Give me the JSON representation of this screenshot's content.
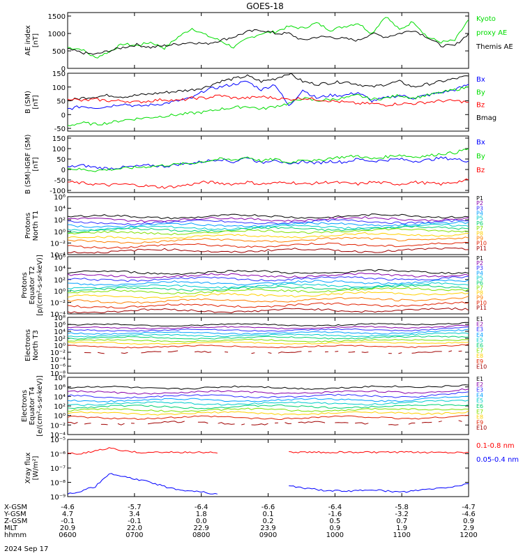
{
  "title": "GOES-18",
  "date_label": "2024 Sep 17",
  "colors": {
    "black": "#000000",
    "blue": "#0000ff",
    "green": "#00dd00",
    "red": "#ff0000",
    "spectrum": [
      "#000000",
      "#8800aa",
      "#3030ff",
      "#00a0ff",
      "#00cccc",
      "#00d070",
      "#80e000",
      "#ffd000",
      "#ff8000",
      "#e02000",
      "#a00000"
    ]
  },
  "chart_data": [
    {
      "type": "line",
      "id": "ae",
      "ylabel": "AE index\n[nT]",
      "ylim": [
        0,
        1600
      ],
      "log": false,
      "yticks": [
        0,
        500,
        1000,
        1500
      ],
      "ytick_labels": [
        "0",
        "500",
        "1000",
        "1500"
      ],
      "legend": [
        {
          "text": "Kyoto",
          "color": "green"
        },
        {
          "text": "proxy AE",
          "color": "green"
        },
        {
          "text": "Themis AE",
          "color": "black"
        }
      ],
      "series": [
        {
          "color": "green",
          "values": [
            600,
            550,
            300,
            480,
            700,
            650,
            750,
            580,
            900,
            1150,
            950,
            800,
            600,
            850,
            1000,
            1050,
            1200,
            1150,
            1300,
            1100,
            1200,
            1300,
            1000,
            1500,
            1100,
            1350,
            900,
            750,
            800,
            1400
          ]
        },
        {
          "color": "black",
          "values": [
            550,
            450,
            400,
            500,
            600,
            680,
            600,
            650,
            700,
            750,
            700,
            800,
            900,
            1050,
            1100,
            1000,
            1000,
            800,
            900,
            900,
            850,
            800,
            1000,
            900,
            1000,
            1100,
            900,
            650,
            650,
            1000
          ]
        }
      ]
    },
    {
      "type": "line",
      "id": "bsm",
      "ylabel": "B (SM)\n[nT]",
      "ylim": [
        -60,
        150
      ],
      "log": false,
      "yticks": [
        -50,
        0,
        50,
        100,
        150
      ],
      "ytick_labels": [
        "-50",
        "0",
        "50",
        "100",
        "150"
      ],
      "legend": [
        {
          "text": "Bx",
          "color": "blue"
        },
        {
          "text": "By",
          "color": "green"
        },
        {
          "text": "Bz",
          "color": "red"
        },
        {
          "text": "Bmag",
          "color": "black"
        }
      ],
      "series": [
        {
          "color": "black",
          "values": [
            50,
            60,
            65,
            70,
            65,
            70,
            75,
            80,
            85,
            90,
            100,
            120,
            130,
            140,
            120,
            130,
            150,
            120,
            110,
            115,
            120,
            110,
            100,
            110,
            120,
            100,
            110,
            120,
            130,
            140
          ]
        },
        {
          "color": "blue",
          "values": [
            20,
            30,
            25,
            30,
            40,
            30,
            35,
            40,
            50,
            60,
            90,
            100,
            110,
            120,
            90,
            110,
            30,
            90,
            60,
            70,
            70,
            80,
            50,
            60,
            70,
            60,
            70,
            80,
            90,
            110
          ]
        },
        {
          "color": "green",
          "values": [
            -40,
            -30,
            -35,
            -30,
            -20,
            -15,
            -10,
            -5,
            0,
            5,
            10,
            20,
            25,
            30,
            20,
            30,
            40,
            60,
            50,
            55,
            60,
            70,
            55,
            60,
            70,
            60,
            70,
            80,
            90,
            100
          ]
        },
        {
          "color": "red",
          "values": [
            60,
            50,
            55,
            50,
            50,
            45,
            50,
            55,
            50,
            60,
            60,
            70,
            60,
            60,
            65,
            60,
            55,
            60,
            55,
            50,
            45,
            40,
            40,
            35,
            40,
            40,
            45,
            50,
            50,
            45
          ]
        }
      ]
    },
    {
      "type": "line",
      "id": "bsm_igrf",
      "ylabel": "B (SM)-IGRF (SM)\n[nT]",
      "ylim": [
        -110,
        160
      ],
      "log": false,
      "yticks": [
        -100,
        -50,
        0,
        50,
        100,
        150
      ],
      "ytick_labels": [
        "-100",
        "-50",
        "0",
        "50",
        "100",
        "150"
      ],
      "legend": [
        {
          "text": "Bx",
          "color": "blue"
        },
        {
          "text": "By",
          "color": "green"
        },
        {
          "text": "Bz",
          "color": "red"
        }
      ],
      "series": [
        {
          "color": "blue",
          "values": [
            10,
            20,
            10,
            5,
            10,
            15,
            20,
            15,
            25,
            30,
            40,
            50,
            35,
            60,
            30,
            50,
            20,
            40,
            30,
            40,
            35,
            50,
            40,
            45,
            50,
            40,
            45,
            55,
            50,
            40
          ]
        },
        {
          "color": "green",
          "values": [
            5,
            0,
            -5,
            0,
            5,
            10,
            15,
            20,
            25,
            30,
            40,
            50,
            45,
            60,
            40,
            50,
            30,
            50,
            40,
            55,
            60,
            65,
            50,
            60,
            70,
            60,
            65,
            75,
            80,
            100
          ]
        },
        {
          "color": "red",
          "values": [
            -60,
            -65,
            -70,
            -75,
            -70,
            -75,
            -80,
            -85,
            -80,
            -70,
            -60,
            -65,
            -70,
            -60,
            -70,
            -65,
            -60,
            -70,
            -65,
            -60,
            -65,
            -70,
            -60,
            -65,
            -70,
            -60,
            -65,
            -70,
            -60,
            -50
          ]
        }
      ]
    },
    {
      "type": "line",
      "id": "protons_t1",
      "ylabel": "Protons\nNorth T1",
      "ylim": [
        0.0001,
        1000000
      ],
      "log": true,
      "yticks": [
        0.0001,
        0.01,
        1,
        100,
        10000,
        1000000
      ],
      "ytick_labels": [
        "10⁻⁴",
        "10⁻²",
        "10⁰",
        "10²",
        "10⁴",
        "10⁶"
      ],
      "legend": [
        {
          "text": "P1",
          "color": "spectrum.0"
        },
        {
          "text": "P2",
          "color": "spectrum.1"
        },
        {
          "text": "P3",
          "color": "spectrum.2"
        },
        {
          "text": "P4",
          "color": "spectrum.3"
        },
        {
          "text": "P5",
          "color": "spectrum.4"
        },
        {
          "text": "P6",
          "color": "spectrum.5"
        },
        {
          "text": "P7",
          "color": "spectrum.6"
        },
        {
          "text": "P8",
          "color": "spectrum.7"
        },
        {
          "text": "P9",
          "color": "spectrum.8"
        },
        {
          "text": "P10",
          "color": "spectrum.9"
        },
        {
          "text": "P11",
          "color": "spectrum.10"
        }
      ],
      "series_log10": [
        2.5,
        2.0,
        1.5,
        1.0,
        0.5,
        0.1,
        -0.4,
        -1.2,
        -1.8,
        -2.6,
        -3.4
      ],
      "series_drift": [
        0.2,
        0.2,
        0.25,
        0.3,
        0.4,
        0.55,
        0.7,
        0.8,
        0.6,
        0.4,
        0.2
      ]
    },
    {
      "type": "line",
      "id": "protons_t2",
      "ylabel": "Protons\nEquator T2\n[p/(cm²-s-sr-keV)]",
      "ylim": [
        0.0001,
        1000000
      ],
      "log": true,
      "yticks": [
        0.0001,
        0.01,
        1,
        100,
        10000,
        1000000
      ],
      "ytick_labels": [
        "10⁻⁴",
        "10⁻²",
        "10⁰",
        "10²",
        "10⁴",
        "10⁶"
      ],
      "legend": [
        {
          "text": "P1",
          "color": "spectrum.0"
        },
        {
          "text": "P2",
          "color": "spectrum.1"
        },
        {
          "text": "P3",
          "color": "spectrum.2"
        },
        {
          "text": "P4",
          "color": "spectrum.3"
        },
        {
          "text": "P5",
          "color": "spectrum.4"
        },
        {
          "text": "P6",
          "color": "spectrum.5"
        },
        {
          "text": "P7",
          "color": "spectrum.6"
        },
        {
          "text": "P8",
          "color": "spectrum.7"
        },
        {
          "text": "P9",
          "color": "spectrum.8"
        },
        {
          "text": "P10",
          "color": "spectrum.9"
        },
        {
          "text": "P11",
          "color": "spectrum.10"
        }
      ],
      "series_log10": [
        3.2,
        2.6,
        2.0,
        1.3,
        0.7,
        0.2,
        -0.3,
        -1.1,
        -1.9,
        -2.7,
        -3.5
      ],
      "series_drift": [
        0.2,
        0.2,
        0.25,
        0.3,
        0.4,
        0.55,
        0.7,
        0.8,
        0.6,
        0.4,
        0.2
      ]
    },
    {
      "type": "line",
      "id": "electrons_t3",
      "ylabel": "Electrons\nNorth T3",
      "ylim": [
        1e-08,
        100000000
      ],
      "log": true,
      "yticks": [
        1e-08,
        1e-06,
        0.0001,
        0.01,
        1,
        100,
        10000,
        1000000,
        100000000
      ],
      "ytick_labels": [
        "10⁻⁸",
        "10⁻⁶",
        "10⁻⁴",
        "10⁻²",
        "10⁰",
        "10²",
        "10⁴",
        "10⁶",
        "10⁸"
      ],
      "legend": [
        {
          "text": "E1",
          "color": "spectrum.0"
        },
        {
          "text": "E2",
          "color": "spectrum.1"
        },
        {
          "text": "E3",
          "color": "spectrum.2"
        },
        {
          "text": "E4",
          "color": "spectrum.3"
        },
        {
          "text": "E5",
          "color": "spectrum.4"
        },
        {
          "text": "E6",
          "color": "spectrum.5"
        },
        {
          "text": "E7",
          "color": "spectrum.6"
        },
        {
          "text": "E8",
          "color": "spectrum.7"
        },
        {
          "text": "E9",
          "color": "spectrum.9"
        },
        {
          "text": "E10",
          "color": "spectrum.10"
        }
      ],
      "series_log10": [
        5.8,
        5.0,
        4.3,
        3.5,
        2.8,
        2.1,
        1.3,
        0.6,
        -0.4,
        -2.0
      ],
      "series_drift": [
        0.1,
        0.1,
        0.1,
        0.1,
        0.1,
        0.1,
        0.1,
        0.1,
        0.1,
        0.0
      ]
    },
    {
      "type": "line",
      "id": "electrons_t4",
      "ylabel": "Electrons\nEquator T4\n[e/(cm²-s-sr-keV)]",
      "ylim": [
        0.0001,
        100000000
      ],
      "log": true,
      "yticks": [
        0.0001,
        0.01,
        1,
        100,
        10000,
        1000000,
        100000000
      ],
      "ytick_labels": [
        "10⁻⁴",
        "10⁻²",
        "10⁰",
        "10²",
        "10⁴",
        "10⁶",
        "10⁸"
      ],
      "legend": [
        {
          "text": "E1",
          "color": "spectrum.0"
        },
        {
          "text": "E2",
          "color": "spectrum.1"
        },
        {
          "text": "E3",
          "color": "spectrum.2"
        },
        {
          "text": "E4",
          "color": "spectrum.3"
        },
        {
          "text": "E5",
          "color": "spectrum.4"
        },
        {
          "text": "E6",
          "color": "spectrum.5"
        },
        {
          "text": "E7",
          "color": "spectrum.6"
        },
        {
          "text": "E8",
          "color": "spectrum.7"
        },
        {
          "text": "E9",
          "color": "spectrum.9"
        },
        {
          "text": "E10",
          "color": "spectrum.10"
        }
      ],
      "series_log10": [
        5.8,
        4.8,
        4.0,
        3.2,
        2.5,
        1.8,
        1.1,
        0.4,
        -0.5,
        -1.6
      ],
      "series_drift": [
        0.1,
        0.1,
        0.1,
        0.1,
        0.1,
        0.1,
        0.1,
        0.1,
        0.1,
        0.0
      ]
    },
    {
      "type": "line",
      "id": "xray",
      "ylabel": "Xray flux\n[W/m²]",
      "ylim": [
        1e-09,
        1e-05
      ],
      "log": true,
      "yticks": [
        1e-09,
        1e-08,
        1e-07,
        1e-06,
        1e-05
      ],
      "ytick_labels": [
        "10⁻⁹",
        "10⁻⁸",
        "10⁻⁷",
        "10⁻⁶",
        "10⁻⁵"
      ],
      "legend": [
        {
          "text": "0.1-0.8 nm",
          "color": "red"
        },
        {
          "text": "0.05-0.4 nm",
          "color": "blue"
        }
      ],
      "series": [
        {
          "color": "red",
          "values_log10": [
            -6.0,
            -6.0,
            -5.8,
            -5.6,
            -5.8,
            -5.9,
            -5.9,
            -5.9,
            -5.9,
            -5.9,
            -5.9,
            -5.9,
            null,
            null,
            null,
            null,
            -5.9,
            -5.9,
            -5.9,
            -5.9,
            -5.9,
            -5.9,
            -5.9,
            -5.9,
            -5.9,
            -5.9,
            -5.9,
            -5.9,
            -5.9,
            -5.9
          ]
        },
        {
          "color": "blue",
          "values_log10": [
            -8.8,
            -8.6,
            -8.3,
            -7.4,
            -7.6,
            -7.8,
            -8.0,
            -8.3,
            -8.5,
            -8.6,
            -8.7,
            -8.9,
            null,
            null,
            null,
            null,
            -8.2,
            -8.4,
            -8.5,
            -8.6,
            -8.6,
            -8.6,
            -8.5,
            -8.6,
            -8.7,
            -8.6,
            -8.5,
            -8.4,
            -8.3,
            -8.1
          ]
        }
      ]
    }
  ],
  "x_axis": {
    "ticks": [
      0,
      1,
      2,
      3,
      4,
      5,
      6
    ],
    "rows": [
      {
        "label": "X-GSM",
        "values": [
          "-4.6",
          "-5.7",
          "-6.4",
          "-6.6",
          "-6.4",
          "-5.8",
          "-4.7"
        ]
      },
      {
        "label": "Y-GSM",
        "values": [
          "4.7",
          "3.4",
          "1.8",
          "0.1",
          "-1.6",
          "-3.2",
          "-4.6"
        ]
      },
      {
        "label": "Z-GSM",
        "values": [
          "-0.1",
          "-0.1",
          "0.0",
          "0.2",
          "0.5",
          "0.7",
          "0.9"
        ]
      },
      {
        "label": "MLT",
        "values": [
          "20.9",
          "22.0",
          "22.9",
          "23.9",
          "0.9",
          "1.9",
          "2.9"
        ]
      },
      {
        "label": "hhmm",
        "values": [
          "0600",
          "0700",
          "0800",
          "0900",
          "1000",
          "1100",
          "1200"
        ]
      }
    ]
  }
}
